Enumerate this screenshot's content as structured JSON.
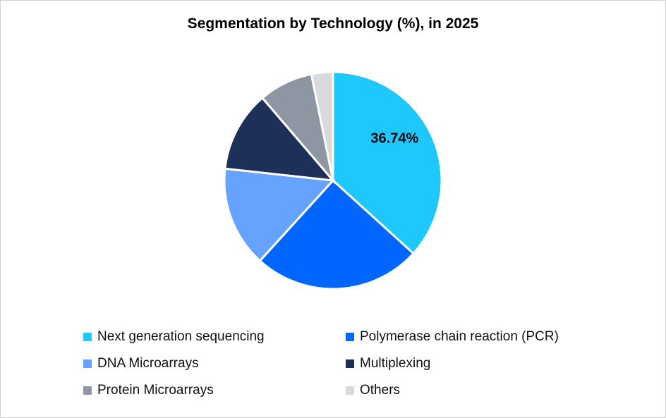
{
  "chart_data": {
    "type": "pie",
    "title": "Segmentation by Technology (%), in 2025",
    "start_angle_deg": 0,
    "direction": "clockwise",
    "legend_position": "bottom",
    "slices": [
      {
        "label": "Next generation sequencing",
        "value": 36.74,
        "color": "#1ec8fc",
        "data_label": "36.74%"
      },
      {
        "label": "Polymerase chain reaction (PCR)",
        "value": 25.0,
        "color": "#0066ff"
      },
      {
        "label": "DNA Microarrays",
        "value": 15.0,
        "color": "#66a3ff"
      },
      {
        "label": "Multiplexing",
        "value": 12.0,
        "color": "#1c3058"
      },
      {
        "label": "Protein Microarrays",
        "value": 8.06,
        "color": "#8e96a4"
      },
      {
        "label": "Others",
        "value": 3.2,
        "color": "#d9d9de"
      }
    ]
  }
}
